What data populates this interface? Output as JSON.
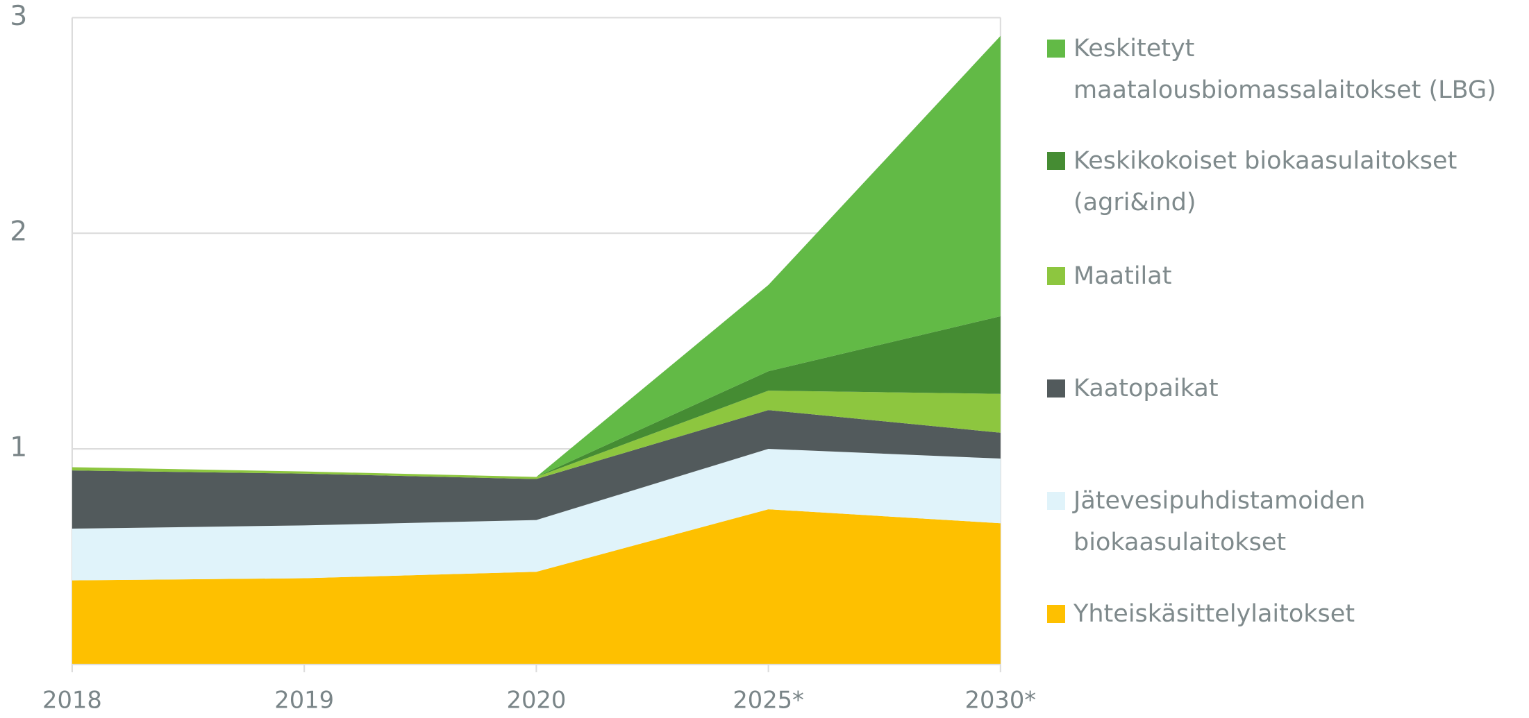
{
  "chart_data": {
    "type": "area",
    "categories": [
      "2018",
      "2019",
      "2020",
      "2025*",
      "2030*"
    ],
    "ylim": [
      0,
      3
    ],
    "yticks": [
      1,
      2,
      3
    ],
    "grid": true,
    "legend": "right",
    "series": [
      {
        "name": "Yhteiskäsittelylaitokset",
        "color": "#fec000",
        "values": [
          0.39,
          0.4,
          0.43,
          0.72,
          0.655
        ]
      },
      {
        "name": "Jätevesipuhdistamoiden biokaasulaitokset",
        "color": "#e0f3fa",
        "values": [
          0.24,
          0.245,
          0.24,
          0.28,
          0.3
        ]
      },
      {
        "name": "Kaatopaikat",
        "color": "#525a5c",
        "values": [
          0.27,
          0.24,
          0.19,
          0.18,
          0.12
        ]
      },
      {
        "name": "Maatilat",
        "color": "#8dc63f",
        "values": [
          0.015,
          0.01,
          0.01,
          0.09,
          0.18
        ]
      },
      {
        "name": "Keskikokoiset biokaasulaitokset (agri&ind)",
        "color": "#458c33",
        "values": [
          0,
          0,
          0,
          0.09,
          0.36
        ]
      },
      {
        "name": "Keskitetyt maatalousbiomassalaitokset (LBG)",
        "color": "#62ba46",
        "values": [
          0,
          0,
          0,
          0.4,
          1.3
        ]
      }
    ]
  }
}
